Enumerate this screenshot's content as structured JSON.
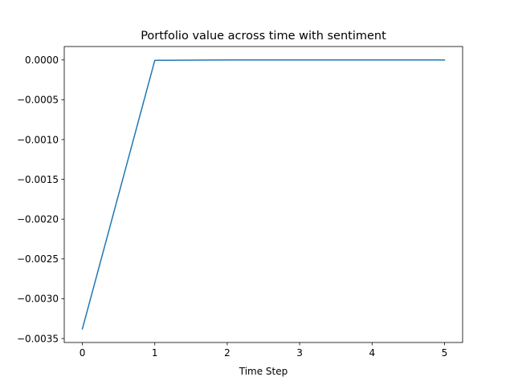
{
  "chart_data": {
    "type": "line",
    "title": "Portfolio value across time with sentiment",
    "xlabel": "Time Step",
    "ylabel": "",
    "x": [
      0,
      1,
      2,
      3,
      4,
      5
    ],
    "series": [
      {
        "values": [
          -0.00338,
          -5e-06,
          0.0,
          0.0,
          0.0,
          0.0
        ],
        "color": "#1f77b4"
      }
    ],
    "xticks": [
      0,
      1,
      2,
      3,
      4,
      5
    ],
    "xtick_labels": [
      "0",
      "1",
      "2",
      "3",
      "4",
      "5"
    ],
    "yticks": [
      0.0,
      -0.0005,
      -0.001,
      -0.0015,
      -0.002,
      -0.0025,
      -0.003,
      -0.0035
    ],
    "ytick_labels": [
      "0.0000",
      "−0.0005",
      "−0.0010",
      "−0.0015",
      "−0.0020",
      "−0.0025",
      "−0.0030",
      "−0.0035"
    ],
    "xlim": [
      -0.25,
      5.25
    ],
    "ylim": [
      -0.00355,
      0.000169
    ],
    "grid": false,
    "legend": false
  }
}
